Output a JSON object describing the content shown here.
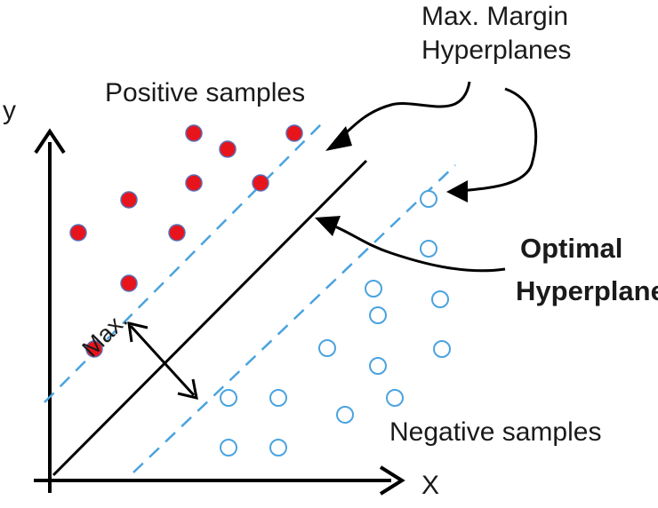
{
  "labels": {
    "y_axis": "y",
    "x_axis": "X",
    "positive": "Positive samples",
    "negative": "Negative samples",
    "margin_title_line1": "Max. Margin",
    "margin_title_line2": "Hyperplanes",
    "optimal_line1": "Optimal",
    "optimal_line2": "Hyperplane",
    "max": "Max."
  },
  "colors": {
    "axis": "#000000",
    "optimal_line": "#000000",
    "margin_line": "#4aa3df",
    "positive_fill": "#e8141c",
    "positive_stroke": "#5b6fb8",
    "negative_fill": "#ffffff",
    "negative_stroke": "#4aa3df",
    "arrow": "#000000"
  },
  "icons": {
    "positive_point": "filled-circle",
    "negative_point": "hollow-circle"
  }
}
